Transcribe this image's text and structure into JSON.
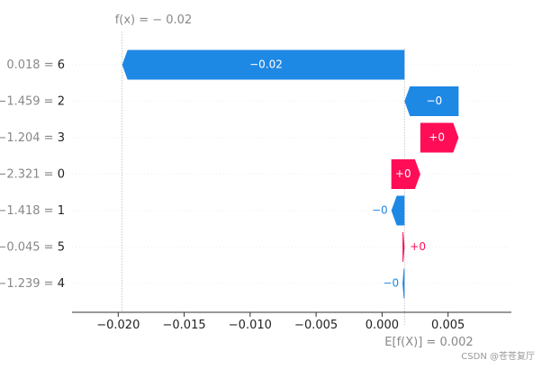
{
  "chart_data": {
    "type": "waterfall",
    "fx_label": "f(x) = − 0.02",
    "fx_value": -0.0197,
    "ex_label": "E[f(X)] = 0.002",
    "ex_value": 0.0017,
    "xlim": [
      -0.0235,
      0.0098
    ],
    "xticks": [
      -0.02,
      -0.015,
      -0.01,
      -0.005,
      0.0,
      0.005
    ],
    "xtick_labels": [
      "−0.020",
      "−0.015",
      "−0.010",
      "−0.005",
      "0.000",
      "0.005"
    ],
    "rows": [
      {
        "label": "0.018 = 6",
        "start": 0.0017,
        "end": -0.0197,
        "text": "−0.02",
        "sign": "neg"
      },
      {
        "label": "−1.459 = 2",
        "start": 0.0058,
        "end": 0.0017,
        "text": "−0",
        "sign": "neg"
      },
      {
        "label": "−1.204 = 3",
        "start": 0.0029,
        "end": 0.0058,
        "text": "+0",
        "sign": "pos"
      },
      {
        "label": "−2.321 = 0",
        "start": 0.0007,
        "end": 0.0029,
        "text": "+0",
        "sign": "pos"
      },
      {
        "label": "−1.418 = 1",
        "start": 0.0017,
        "end": 0.0007,
        "text": "−0",
        "sign": "neg"
      },
      {
        "label": "−0.045 = 5",
        "start": 0.00155,
        "end": 0.0017,
        "text": "+0",
        "sign": "pos"
      },
      {
        "label": "−1.239 = 4",
        "start": 0.0017,
        "end": 0.00155,
        "text": "−0",
        "sign": "neg"
      }
    ],
    "colors": {
      "pos": "#ff0d57",
      "neg": "#1e88e5",
      "axis": "#333333",
      "text": "#333333",
      "grid": "#cccccc"
    }
  },
  "watermark": "CSDN @苍苍复厅"
}
